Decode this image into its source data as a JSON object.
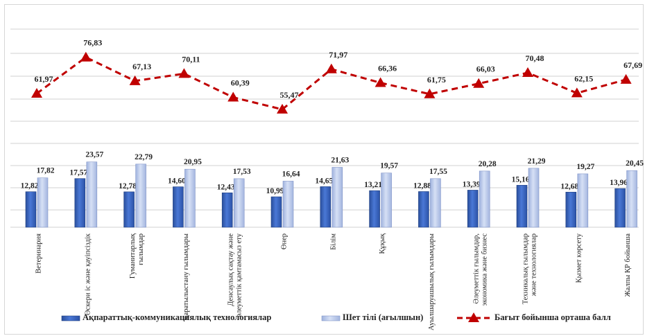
{
  "chart_data": {
    "type": "bar",
    "categories": [
      [
        "Ветеринария"
      ],
      [
        "Әскери іс және қауіпсіздік"
      ],
      [
        "Гуманитарлық",
        "ғылымдар"
      ],
      [
        "Қаратылыстану ғылымдары"
      ],
      [
        "Денсаулық сақтау және",
        "әлеуметтік қамтамасыз ету"
      ],
      [
        "Өнер"
      ],
      [
        "Білім"
      ],
      [
        "Құқық"
      ],
      [
        "Ауылшаруашылық ғылымдары"
      ],
      [
        "Әлеуметтік ғылымдар,",
        "экономика және бизнес"
      ],
      [
        "Техникалық ғылымдар",
        "және технологиялар"
      ],
      [
        "Қызмет көрсету"
      ],
      [
        "Жалпы ҚР бойынша"
      ]
    ],
    "series": [
      {
        "name": "Ақпараттық-коммуникациялық технологиялар",
        "type": "bar",
        "color": "#3a66c4",
        "values": [
          12.82,
          17.57,
          12.78,
          14.6,
          12.43,
          10.99,
          14.65,
          13.21,
          12.88,
          13.39,
          15.16,
          12.68,
          13.96
        ],
        "labels": [
          "12,82",
          "17,57",
          "12,78",
          "14,60",
          "12,43",
          "10,99",
          "14,65",
          "13,21",
          "12,88",
          "13,39",
          "15,16",
          "12,68",
          "13,96"
        ]
      },
      {
        "name": "Шет тілі (ағылшын)",
        "type": "bar",
        "color": "#b9c8ea",
        "values": [
          17.82,
          23.57,
          22.79,
          20.95,
          17.53,
          16.64,
          21.63,
          19.57,
          17.55,
          20.28,
          21.29,
          19.27,
          20.45
        ],
        "labels": [
          "17,82",
          "23,57",
          "22,79",
          "20,95",
          "17,53",
          "16,64",
          "21,63",
          "19,57",
          "17,55",
          "20,28",
          "21,29",
          "19,27",
          "20,45"
        ]
      },
      {
        "name": "Бағыт бойынша орташа балл",
        "type": "line",
        "color": "#c00000",
        "values": [
          61.97,
          76.83,
          67.13,
          70.11,
          60.39,
          55.47,
          71.97,
          66.36,
          61.75,
          66.03,
          70.48,
          62.15,
          67.69
        ],
        "labels": [
          "61,97",
          "76,83",
          "67,13",
          "70,11",
          "60,39",
          "55,47",
          "71,97",
          "66,36",
          "61,75",
          "66,03",
          "70,48",
          "62,15",
          "67,69"
        ]
      }
    ],
    "gridlines": true,
    "legend": "bottom"
  }
}
